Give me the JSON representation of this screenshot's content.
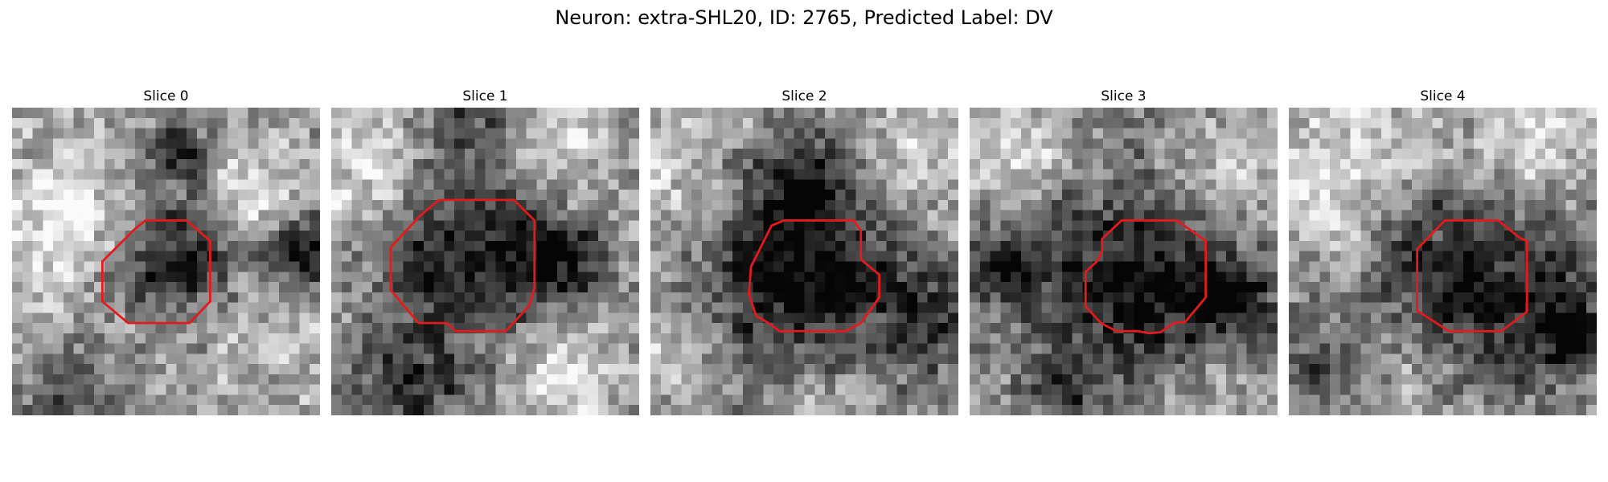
{
  "figure": {
    "title": "Neuron: extra-SHL20, ID: 2765, Predicted Label: DV",
    "grid_cells": 30,
    "outline_color": "#e41a1c",
    "slices": [
      {
        "label": "Slice 0",
        "seed": 11,
        "dark_blobs": [
          [
            16.5,
            15.0,
            4.5,
            0.55
          ],
          [
            16.5,
            4.5,
            2.5,
            0.5
          ],
          [
            28.5,
            14.5,
            2.5,
            0.6
          ],
          [
            6.0,
            28.0,
            3.5,
            0.3
          ]
        ],
        "light_blobs": [
          [
            5.0,
            10.0,
            5.0,
            0.3
          ],
          [
            23.0,
            8.0,
            4.0,
            0.25
          ],
          [
            24.0,
            21.0,
            4.0,
            0.2
          ]
        ],
        "outline": [
          [
            13,
            11
          ],
          [
            17,
            11
          ],
          [
            19.3,
            13
          ],
          [
            19.3,
            18.9
          ],
          [
            17.3,
            21
          ],
          [
            11.3,
            21
          ],
          [
            8.8,
            18.9
          ],
          [
            8.8,
            15
          ],
          [
            12,
            11.8
          ]
        ]
      },
      {
        "label": "Slice 1",
        "seed": 23,
        "dark_blobs": [
          [
            13.5,
            14.5,
            7.0,
            0.55
          ],
          [
            22.5,
            14.5,
            3.0,
            0.35
          ],
          [
            14.0,
            1.5,
            3.0,
            0.3
          ],
          [
            8.0,
            28.0,
            4.0,
            0.35
          ]
        ],
        "light_blobs": [
          [
            3.0,
            7.0,
            5.0,
            0.3
          ],
          [
            22.0,
            4.5,
            4.0,
            0.3
          ],
          [
            21.5,
            25.0,
            4.0,
            0.25
          ]
        ],
        "outline": [
          [
            10.5,
            9
          ],
          [
            17.8,
            9
          ],
          [
            19.8,
            11
          ],
          [
            19.8,
            17.5
          ],
          [
            19.3,
            19.3
          ],
          [
            17,
            21.8
          ],
          [
            12.1,
            21.8
          ],
          [
            11.3,
            21
          ],
          [
            8.5,
            21
          ],
          [
            5.8,
            17.8
          ],
          [
            5.8,
            13.6
          ],
          [
            8.7,
            10.5
          ]
        ]
      },
      {
        "label": "Slice 2",
        "seed": 37,
        "dark_blobs": [
          [
            15.0,
            16.5,
            8.5,
            0.6
          ],
          [
            14.0,
            7.0,
            4.0,
            0.3
          ],
          [
            27.5,
            21.5,
            3.0,
            0.3
          ]
        ],
        "light_blobs": [
          [
            4.0,
            6.0,
            5.0,
            0.3
          ],
          [
            24.0,
            6.0,
            4.0,
            0.3
          ],
          [
            3.0,
            24.0,
            4.0,
            0.25
          ],
          [
            16.0,
            28.0,
            4.0,
            0.2
          ]
        ],
        "outline": [
          [
            13,
            11
          ],
          [
            19.8,
            11
          ],
          [
            20.5,
            12
          ],
          [
            20.5,
            14.8
          ],
          [
            22.3,
            16.3
          ],
          [
            22.3,
            18.5
          ],
          [
            20.5,
            21
          ],
          [
            19,
            21.8
          ],
          [
            12.6,
            21.8
          ],
          [
            11.5,
            21
          ],
          [
            10.3,
            20.3
          ],
          [
            9.6,
            18.2
          ],
          [
            9.8,
            15.5
          ],
          [
            10.8,
            13.5
          ],
          [
            11.8,
            11.5
          ]
        ]
      },
      {
        "label": "Slice 3",
        "seed": 53,
        "dark_blobs": [
          [
            16.0,
            17.0,
            8.0,
            0.55
          ],
          [
            3.0,
            15.0,
            2.5,
            0.45
          ],
          [
            25.5,
            18.5,
            3.0,
            0.4
          ],
          [
            8.5,
            27.5,
            2.5,
            0.35
          ]
        ],
        "light_blobs": [
          [
            4.0,
            4.0,
            4.0,
            0.3
          ],
          [
            25.0,
            7.0,
            4.0,
            0.25
          ],
          [
            24.0,
            27.0,
            3.0,
            0.2
          ]
        ],
        "outline": [
          [
            14.8,
            11
          ],
          [
            20.2,
            11
          ],
          [
            23,
            13
          ],
          [
            23,
            18.5
          ],
          [
            21,
            20.9
          ],
          [
            19.9,
            21
          ],
          [
            18.6,
            21.9
          ],
          [
            17.5,
            22
          ],
          [
            16.4,
            21.8
          ],
          [
            14.3,
            21.8
          ],
          [
            12.8,
            21
          ],
          [
            11.3,
            19.4
          ],
          [
            11.3,
            16
          ],
          [
            12.4,
            15
          ],
          [
            12.9,
            14
          ],
          [
            12.9,
            12.8
          ]
        ]
      },
      {
        "label": "Slice 4",
        "seed": 71,
        "dark_blobs": [
          [
            17.5,
            17.5,
            7.5,
            0.6
          ],
          [
            28.0,
            22.0,
            3.0,
            0.45
          ],
          [
            2.0,
            25.0,
            3.0,
            0.35
          ]
        ],
        "light_blobs": [
          [
            5.0,
            6.0,
            6.0,
            0.3
          ],
          [
            12.0,
            25.0,
            4.0,
            0.25
          ],
          [
            23.5,
            4.5,
            4.0,
            0.3
          ]
        ],
        "outline": [
          [
            15.2,
            11
          ],
          [
            20.4,
            11
          ],
          [
            22.5,
            12.7
          ],
          [
            23.2,
            13
          ],
          [
            23.2,
            19.9
          ],
          [
            20.7,
            21.8
          ],
          [
            15.6,
            21.8
          ],
          [
            12.5,
            19.8
          ],
          [
            12.5,
            13.8
          ]
        ]
      }
    ]
  }
}
